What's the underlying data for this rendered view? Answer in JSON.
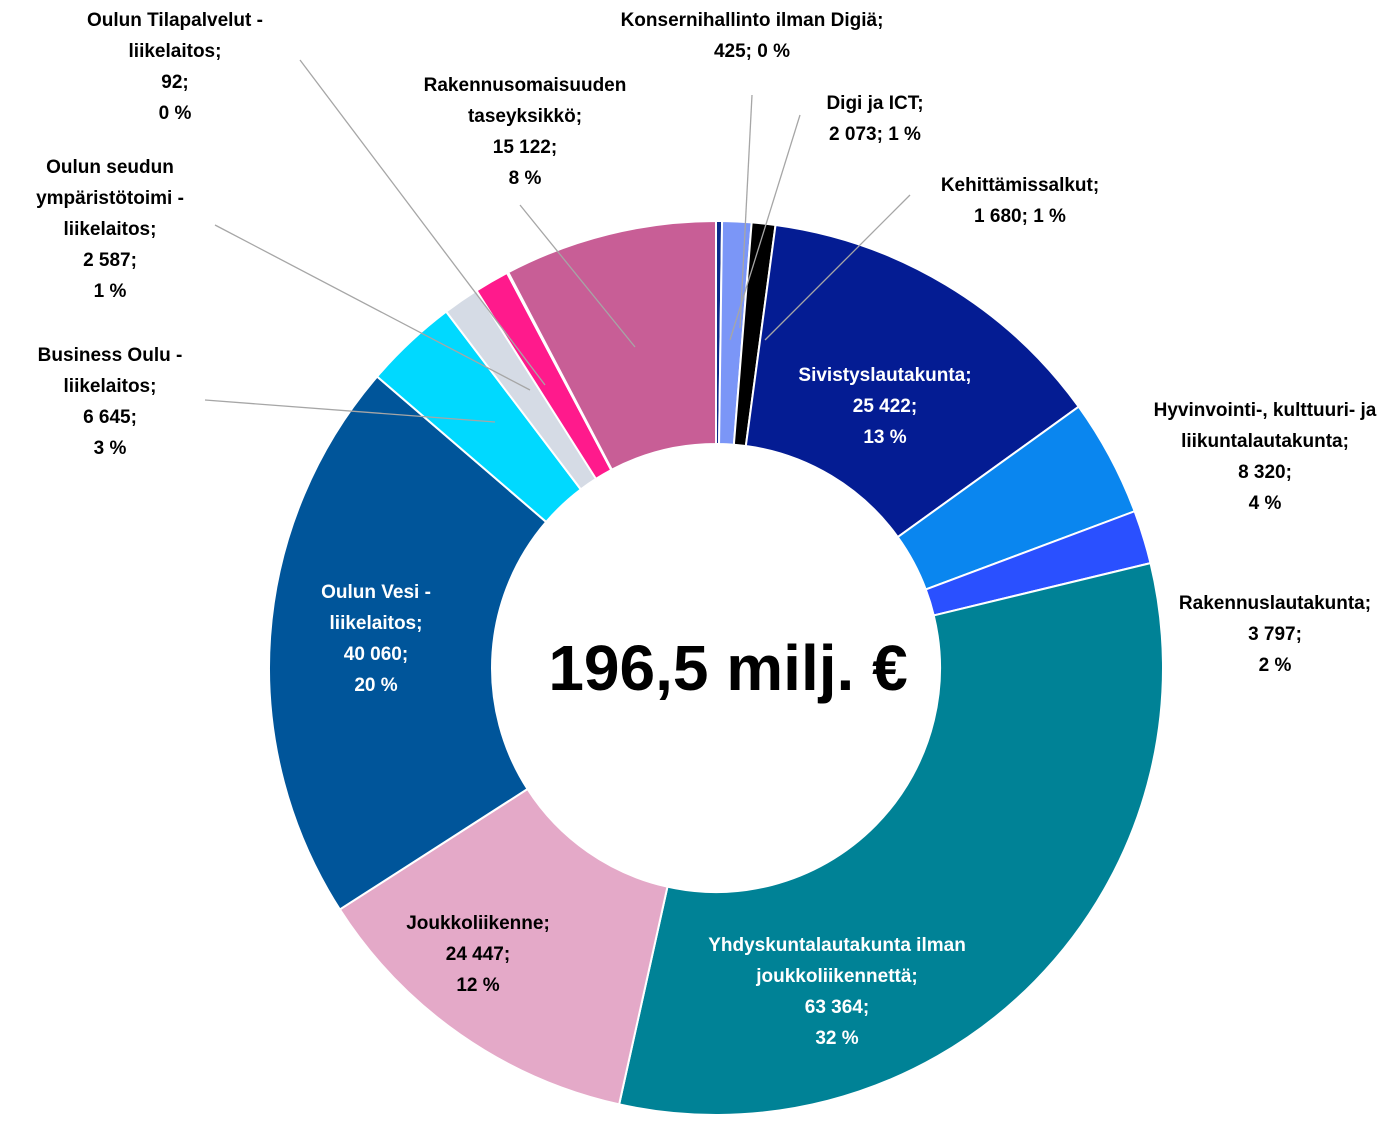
{
  "chart_data": {
    "type": "donut",
    "center_label": "196,5 milj. €",
    "categories": [
      "Konsernihallinto ilman Digiä;",
      "Digi ja ICT;",
      "Kehittämissalkut;",
      "Sivistyslautakunta;",
      "Hyvinvointi-, kulttuuri- ja liikuntalautakunta;",
      "Rakennuslautakunta;",
      "Yhdyskuntalautakunta ilman joukkoliikennettä;",
      "Joukkoliikenne;",
      "Oulun Vesi - liikelaitos;",
      "Business Oulu - liikelaitos;",
      "Oulun seudun ympäristötoimi - liikelaitos;",
      null,
      "Oulun Tilapalvelut - liikelaitos;",
      "Rakennusomaisuuden taseyksikkö;"
    ],
    "values": [
      425,
      2073,
      1680,
      25422,
      8320,
      3797,
      63364,
      24447,
      40060,
      6645,
      2587,
      2466,
      92,
      15122
    ],
    "value_labels": [
      "425;",
      "2 073;",
      "1 680;",
      "25 422;",
      "8 320;",
      "3 797;",
      "63 364;",
      "24 447;",
      "40 060;",
      "6 645;",
      "2 587;",
      null,
      "92;",
      "15 122;"
    ],
    "percent_labels": [
      "0 %",
      "1 %",
      "1 %",
      "13 %",
      "4 %",
      "2 %",
      "32 %",
      "12 %",
      "20 %",
      "3 %",
      "1 %",
      null,
      "0 %",
      "8 %"
    ],
    "colors": [
      "#0b2a8a",
      "#7b96f7",
      "#000000",
      "#041c93",
      "#0a86ef",
      "#2a50ff",
      "#008296",
      "#e4a9c8",
      "#00559a",
      "#00d9ff",
      "#d5dbe5",
      "#ff1a8c",
      "#7030a0",
      "#c85e96"
    ]
  }
}
